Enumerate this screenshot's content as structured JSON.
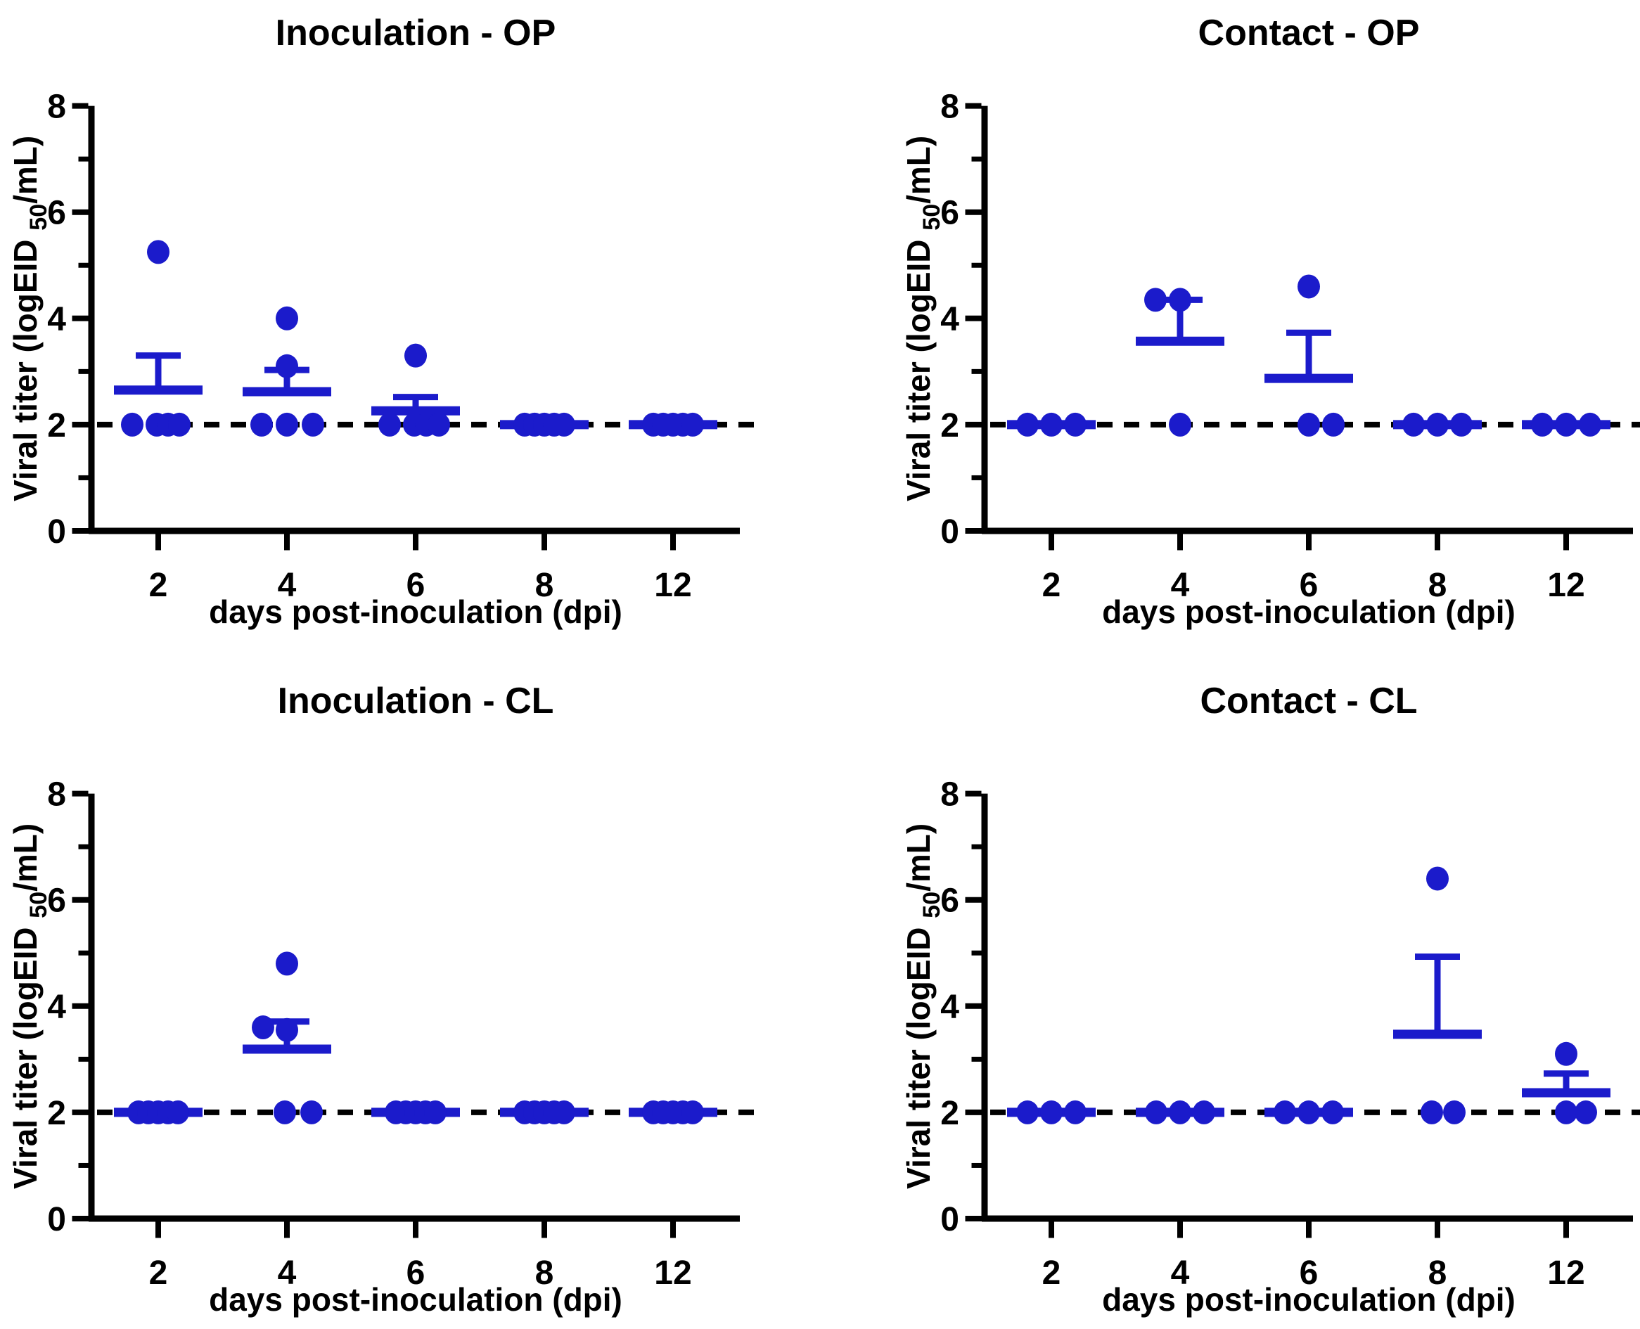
{
  "page": {
    "background": "#ffffff"
  },
  "styles": {
    "accent_blue": "#1b1bcb",
    "axis_color": "#000000",
    "dashed_line_color": "#000000"
  },
  "labels": {
    "xlabel": "days post-inoculation (dpi)",
    "ylabel_pre": "Viral titer (logEID ",
    "ylabel_sub": "50",
    "ylabel_post": "/mL)"
  },
  "chart_data": [
    {
      "type": "scatter",
      "title": "Inoculation - OP",
      "position": {
        "row": 0,
        "col": 0
      },
      "xlabel": "days post-inoculation (dpi)",
      "ylabel": "Viral titer (logEID50/mL)",
      "ylim": [
        0,
        8
      ],
      "yticks": [
        0,
        2,
        4,
        6,
        8
      ],
      "y_minor_ticks": [
        1,
        3,
        5,
        7
      ],
      "categories": [
        2,
        4,
        6,
        8,
        12
      ],
      "detection_limit_y": 2,
      "error_bar_style": "mean with upper SEM",
      "grid": false,
      "groups": [
        {
          "day": 2,
          "values": [
            5.25,
            2,
            2,
            2,
            2
          ],
          "point_dx": [
            0,
            -37,
            -2,
            14,
            30
          ],
          "mean": 2.65,
          "sem_top": 3.3
        },
        {
          "day": 4,
          "values": [
            4.0,
            3.1,
            2,
            2,
            2
          ],
          "point_dx": [
            0,
            0,
            -36,
            0,
            37
          ],
          "mean": 2.62,
          "sem_top": 3.03
        },
        {
          "day": 6,
          "values": [
            3.3,
            2,
            2,
            2,
            2
          ],
          "point_dx": [
            0,
            -37,
            -2,
            15,
            33
          ],
          "mean": 2.26,
          "sem_top": 2.52
        },
        {
          "day": 8,
          "values": [
            2,
            2,
            2,
            2,
            2
          ],
          "point_dx": [
            -28,
            -14,
            0,
            14,
            28
          ],
          "mean": 2.0,
          "sem_top": null
        },
        {
          "day": 12,
          "values": [
            2,
            2,
            2,
            2,
            2
          ],
          "point_dx": [
            -28,
            -14,
            0,
            14,
            28
          ],
          "mean": 2.0,
          "sem_top": null
        }
      ]
    },
    {
      "type": "scatter",
      "title": "Contact - OP",
      "position": {
        "row": 0,
        "col": 1
      },
      "xlabel": "days post-inoculation (dpi)",
      "ylabel": "Viral titer (logEID50/mL)",
      "ylim": [
        0,
        8
      ],
      "yticks": [
        0,
        2,
        4,
        6,
        8
      ],
      "y_minor_ticks": [
        1,
        3,
        5,
        7
      ],
      "categories": [
        2,
        4,
        6,
        8,
        12
      ],
      "detection_limit_y": 2,
      "error_bar_style": "mean with upper SEM",
      "grid": false,
      "groups": [
        {
          "day": 2,
          "values": [
            2,
            2,
            2
          ],
          "point_dx": [
            -34,
            0,
            34
          ],
          "mean": 2.0,
          "sem_top": null
        },
        {
          "day": 4,
          "values": [
            4.35,
            4.35,
            2
          ],
          "point_dx": [
            -35,
            0,
            0
          ],
          "mean": 3.57,
          "sem_top": 4.35
        },
        {
          "day": 6,
          "values": [
            4.6,
            2,
            2
          ],
          "point_dx": [
            0,
            0,
            35
          ],
          "mean": 2.87,
          "sem_top": 3.73
        },
        {
          "day": 8,
          "values": [
            2,
            2,
            2
          ],
          "point_dx": [
            -34,
            0,
            34
          ],
          "mean": 2.0,
          "sem_top": null
        },
        {
          "day": 12,
          "values": [
            2,
            2,
            2
          ],
          "point_dx": [
            -34,
            0,
            34
          ],
          "mean": 2.0,
          "sem_top": null
        }
      ]
    },
    {
      "type": "scatter",
      "title": "Inoculation - CL",
      "position": {
        "row": 1,
        "col": 0
      },
      "xlabel": "days post-inoculation (dpi)",
      "ylabel": "Viral titer (logEID50/mL)",
      "ylim": [
        0,
        8
      ],
      "yticks": [
        0,
        2,
        4,
        6,
        8
      ],
      "y_minor_ticks": [
        1,
        3,
        5,
        7
      ],
      "categories": [
        2,
        4,
        6,
        8,
        12
      ],
      "detection_limit_y": 2,
      "error_bar_style": "mean with upper SEM",
      "grid": false,
      "groups": [
        {
          "day": 2,
          "values": [
            2,
            2,
            2,
            2,
            2
          ],
          "point_dx": [
            -28,
            -14,
            0,
            14,
            28
          ],
          "mean": 2.0,
          "sem_top": null
        },
        {
          "day": 4,
          "values": [
            4.8,
            3.6,
            3.55,
            2,
            2
          ],
          "point_dx": [
            0,
            -34,
            0,
            -3,
            35
          ],
          "mean": 3.19,
          "sem_top": 3.71
        },
        {
          "day": 6,
          "values": [
            2,
            2,
            2,
            2,
            2
          ],
          "point_dx": [
            -28,
            -14,
            0,
            14,
            28
          ],
          "mean": 2.0,
          "sem_top": null
        },
        {
          "day": 8,
          "values": [
            2,
            2,
            2,
            2,
            2
          ],
          "point_dx": [
            -28,
            -14,
            0,
            14,
            28
          ],
          "mean": 2.0,
          "sem_top": null
        },
        {
          "day": 12,
          "values": [
            2,
            2,
            2,
            2,
            2
          ],
          "point_dx": [
            -28,
            -14,
            0,
            14,
            28
          ],
          "mean": 2.0,
          "sem_top": null
        }
      ]
    },
    {
      "type": "scatter",
      "title": "Contact - CL",
      "position": {
        "row": 1,
        "col": 1
      },
      "xlabel": "days post-inoculation (dpi)",
      "ylabel": "Viral titer (logEID50/mL)",
      "ylim": [
        0,
        8
      ],
      "yticks": [
        0,
        2,
        4,
        6,
        8
      ],
      "y_minor_ticks": [
        1,
        3,
        5,
        7
      ],
      "categories": [
        2,
        4,
        6,
        8,
        12
      ],
      "detection_limit_y": 2,
      "error_bar_style": "mean with upper SEM",
      "grid": false,
      "groups": [
        {
          "day": 2,
          "values": [
            2,
            2,
            2
          ],
          "point_dx": [
            -34,
            0,
            34
          ],
          "mean": 2.0,
          "sem_top": null
        },
        {
          "day": 4,
          "values": [
            2,
            2,
            2
          ],
          "point_dx": [
            -34,
            0,
            34
          ],
          "mean": 2.0,
          "sem_top": null
        },
        {
          "day": 6,
          "values": [
            2,
            2,
            2
          ],
          "point_dx": [
            -34,
            0,
            34
          ],
          "mean": 2.0,
          "sem_top": null
        },
        {
          "day": 8,
          "values": [
            6.4,
            2,
            2
          ],
          "point_dx": [
            0,
            -8,
            24
          ],
          "mean": 3.47,
          "sem_top": 4.93
        },
        {
          "day": 12,
          "values": [
            3.1,
            2,
            2
          ],
          "point_dx": [
            0,
            0,
            28
          ],
          "mean": 2.37,
          "sem_top": 2.73
        }
      ]
    }
  ]
}
